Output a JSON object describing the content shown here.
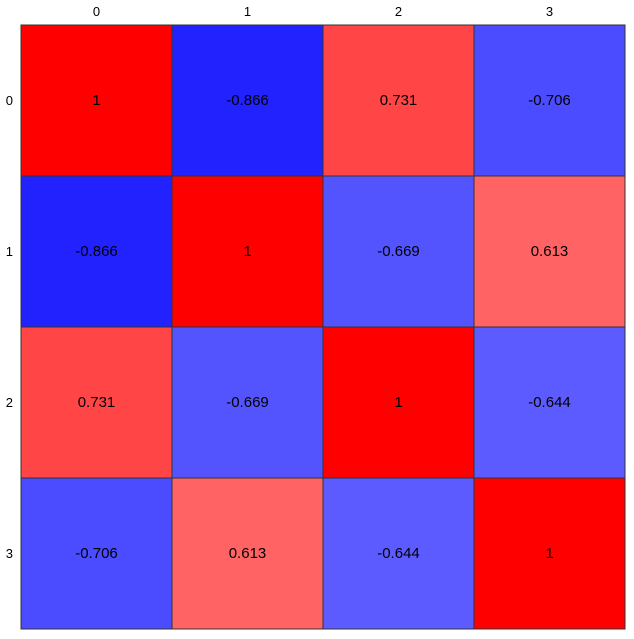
{
  "chart_data": {
    "type": "heatmap",
    "title": "",
    "xlabel": "",
    "ylabel": "",
    "x_categories": [
      "0",
      "1",
      "2",
      "3"
    ],
    "y_categories": [
      "0",
      "1",
      "2",
      "3"
    ],
    "values": [
      [
        1,
        -0.866,
        0.731,
        -0.706
      ],
      [
        -0.866,
        1,
        -0.669,
        0.613
      ],
      [
        0.731,
        -0.669,
        1,
        -0.644
      ],
      [
        -0.706,
        0.613,
        -0.644,
        1
      ]
    ],
    "value_labels": [
      [
        "1",
        "-0.866",
        "0.731",
        "-0.706"
      ],
      [
        "-0.866",
        "1",
        "-0.669",
        "0.613"
      ],
      [
        "0.731",
        "-0.669",
        "1",
        "-0.644"
      ],
      [
        "-0.706",
        "0.613",
        "-0.644",
        "1"
      ]
    ],
    "color_scale": {
      "min": -1,
      "max": 1,
      "negative_color": "#0000ff",
      "positive_color": "#ff0000",
      "neutral_color": "#ffffff"
    },
    "x_tick_position": "top",
    "y_tick_position": "left",
    "grid": true,
    "legend": "none"
  }
}
